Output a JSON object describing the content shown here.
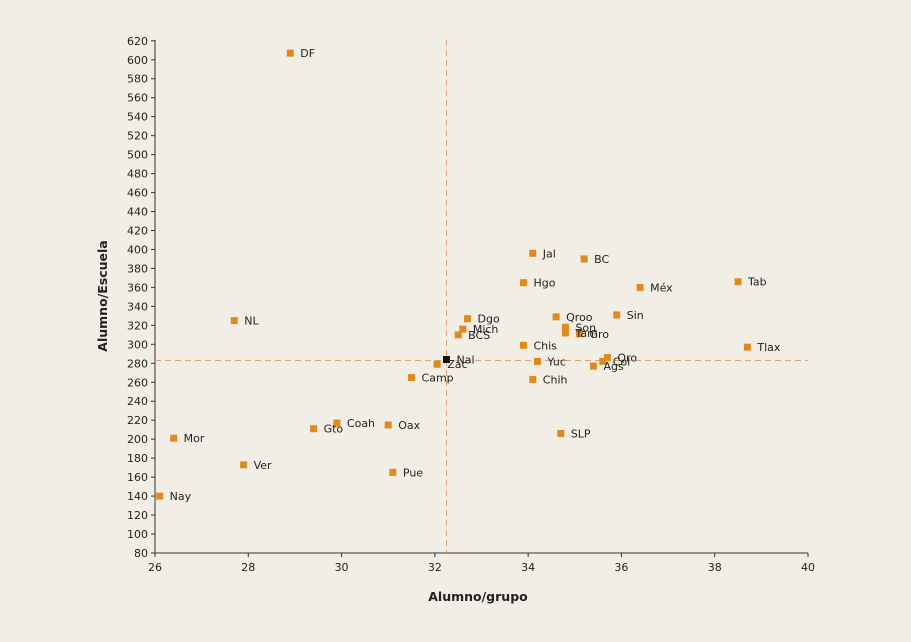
{
  "chart_data": {
    "type": "scatter",
    "xlabel": "Alumno/grupo",
    "ylabel": "Alumno/Escuela",
    "xlim": [
      26,
      40
    ],
    "ylim": [
      80,
      620
    ],
    "x_ticks": [
      26,
      28,
      30,
      32,
      34,
      36,
      38,
      40
    ],
    "y_ticks": [
      80,
      100,
      120,
      140,
      160,
      180,
      200,
      220,
      240,
      260,
      280,
      300,
      320,
      340,
      360,
      380,
      400,
      420,
      440,
      460,
      480,
      500,
      520,
      540,
      560,
      580,
      600,
      620
    ],
    "reference_lines": {
      "x": 32.25,
      "y": 283
    },
    "grid": false,
    "colors": {
      "state": "#e08a1e",
      "national": "#111111",
      "reference": "#e0a070"
    },
    "points": [
      {
        "label": "DF",
        "x": 28.9,
        "y": 607
      },
      {
        "label": "NL",
        "x": 27.7,
        "y": 325
      },
      {
        "label": "Mor",
        "x": 26.4,
        "y": 201
      },
      {
        "label": "Ver",
        "x": 27.9,
        "y": 173
      },
      {
        "label": "Nay",
        "x": 26.1,
        "y": 140
      },
      {
        "label": "Gto",
        "x": 29.4,
        "y": 211
      },
      {
        "label": "Coah",
        "x": 29.9,
        "y": 217
      },
      {
        "label": "Oax",
        "x": 31.0,
        "y": 215
      },
      {
        "label": "Pue",
        "x": 31.1,
        "y": 165
      },
      {
        "label": "Camp",
        "x": 31.5,
        "y": 265
      },
      {
        "label": "Zac",
        "x": 32.05,
        "y": 279
      },
      {
        "label": "Nal",
        "x": 32.25,
        "y": 284,
        "national": true
      },
      {
        "label": "Dgo",
        "x": 32.7,
        "y": 327
      },
      {
        "label": "Mich",
        "x": 32.6,
        "y": 316
      },
      {
        "label": "BCS",
        "x": 32.5,
        "y": 310
      },
      {
        "label": "Jal",
        "x": 34.1,
        "y": 396
      },
      {
        "label": "Hgo",
        "x": 33.9,
        "y": 365
      },
      {
        "label": "BC",
        "x": 35.2,
        "y": 390
      },
      {
        "label": "Méx",
        "x": 36.4,
        "y": 360
      },
      {
        "label": "Tab",
        "x": 38.5,
        "y": 366
      },
      {
        "label": "Qroo",
        "x": 34.6,
        "y": 329
      },
      {
        "label": "Son",
        "x": 34.8,
        "y": 318
      },
      {
        "label": "Tam",
        "x": 34.8,
        "y": 312
      },
      {
        "label": "Gro",
        "x": 35.1,
        "y": 311
      },
      {
        "label": "Sin",
        "x": 35.9,
        "y": 331
      },
      {
        "label": "Chis",
        "x": 33.9,
        "y": 299
      },
      {
        "label": "Tlax",
        "x": 38.7,
        "y": 297
      },
      {
        "label": "Yuc",
        "x": 34.2,
        "y": 282
      },
      {
        "label": "Qro",
        "x": 35.7,
        "y": 286
      },
      {
        "label": "Col",
        "x": 35.6,
        "y": 282
      },
      {
        "label": "Ags",
        "x": 35.4,
        "y": 277
      },
      {
        "label": "Chih",
        "x": 34.1,
        "y": 263
      },
      {
        "label": "SLP",
        "x": 34.7,
        "y": 206
      }
    ]
  }
}
